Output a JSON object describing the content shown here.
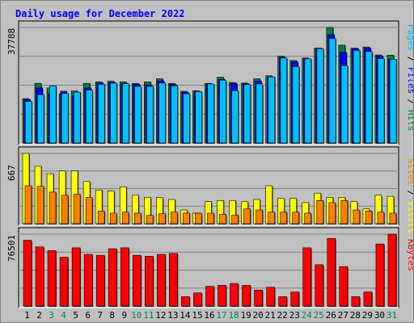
{
  "title": "Daily usage for December 2022",
  "colors": {
    "background": "#c0c0c0",
    "panel": "#c0c0c0",
    "grid": "#808080",
    "hits": "#008040",
    "files": "#0000ff",
    "pages": "#00c0ff",
    "visits": "#ffff00",
    "sites": "#ff8000",
    "kbytes": "#ff0000",
    "title_text": "#0000ff",
    "weekday_label": "#000000",
    "weekend_label": "#00805c"
  },
  "chart_data": [
    {
      "type": "bar",
      "panel": "top",
      "series": [
        {
          "name": "Hits",
          "values": [
            14500,
            19500,
            18000,
            16000,
            17000,
            19500,
            20000,
            20200,
            20000,
            19500,
            20000,
            21000,
            19500,
            16900,
            17100,
            19500,
            21500,
            19800,
            19600,
            21000,
            22000,
            28400,
            27000,
            27800,
            31000,
            37800,
            32000,
            31000,
            31400,
            28800,
            28700
          ]
        },
        {
          "name": "Files",
          "values": [
            14200,
            18000,
            16000,
            16900,
            15500,
            18000,
            19600,
            19800,
            19500,
            19200,
            19000,
            20300,
            19200,
            16600,
            16700,
            19000,
            20800,
            19500,
            19400,
            20200,
            21600,
            28000,
            26600,
            27500,
            31000,
            35500,
            29700,
            30900,
            31000,
            28500,
            27400
          ]
        },
        {
          "name": "Pages",
          "values": [
            13600,
            15800,
            18700,
            16200,
            16600,
            17300,
            19200,
            19600,
            19400,
            18500,
            18500,
            19600,
            18700,
            16100,
            16800,
            19300,
            20500,
            17100,
            19100,
            19300,
            21600,
            27800,
            25000,
            27500,
            30800,
            34200,
            25300,
            30300,
            29900,
            27600,
            27400
          ]
        }
      ],
      "ylim": [
        0,
        37788
      ],
      "scale_label": "37788"
    },
    {
      "type": "bar",
      "panel": "middle",
      "series": [
        {
          "name": "Visits",
          "values": [
            667,
            545,
            475,
            500,
            500,
            400,
            320,
            310,
            350,
            270,
            250,
            250,
            230,
            130,
            100,
            210,
            220,
            220,
            210,
            230,
            360,
            240,
            240,
            200,
            290,
            250,
            250,
            210,
            140,
            270,
            260
          ]
        },
        {
          "name": "Sites",
          "values": [
            360,
            355,
            300,
            270,
            280,
            250,
            120,
            100,
            110,
            100,
            80,
            95,
            110,
            100,
            100,
            100,
            90,
            80,
            140,
            130,
            110,
            110,
            110,
            100,
            220,
            200,
            220,
            130,
            120,
            110,
            100
          ]
        }
      ],
      "ylim": [
        0,
        667
      ],
      "scale_label": "667"
    },
    {
      "type": "bar",
      "panel": "bottom",
      "series": [
        {
          "name": "KBytes",
          "values": [
            70000,
            63000,
            59000,
            52000,
            62000,
            55000,
            54000,
            61000,
            62000,
            54000,
            53000,
            55000,
            56000,
            10000,
            14000,
            21000,
            22000,
            24000,
            22000,
            17000,
            20000,
            10000,
            15000,
            62000,
            44000,
            72000,
            42000,
            10000,
            15000,
            66000,
            76501
          ]
        }
      ],
      "ylim": [
        0,
        76501
      ],
      "scale_label": "76501"
    }
  ],
  "x_labels": [
    "1",
    "2",
    "3",
    "4",
    "5",
    "6",
    "7",
    "8",
    "9",
    "10",
    "11",
    "12",
    "13",
    "14",
    "15",
    "16",
    "17",
    "18",
    "19",
    "20",
    "21",
    "22",
    "23",
    "24",
    "25",
    "26",
    "27",
    "28",
    "29",
    "30",
    "31"
  ],
  "weekend_days": [
    3,
    4,
    10,
    11,
    17,
    18,
    24,
    25,
    31
  ],
  "side_labels": {
    "top": [
      {
        "text": "Pages",
        "color": "#00c0ff"
      },
      {
        "text": " / ",
        "color": "#000000"
      },
      {
        "text": "Files",
        "color": "#0000ff"
      },
      {
        "text": " / ",
        "color": "#000000"
      },
      {
        "text": "Hits",
        "color": "#008040"
      }
    ],
    "middle": [
      {
        "text": "Sites",
        "color": "#ff8000"
      },
      {
        "text": " / ",
        "color": "#000000"
      },
      {
        "text": "Visits",
        "color": "#ffff00"
      }
    ],
    "bottom": [
      {
        "text": "KBytes",
        "color": "#ff0000"
      }
    ]
  }
}
